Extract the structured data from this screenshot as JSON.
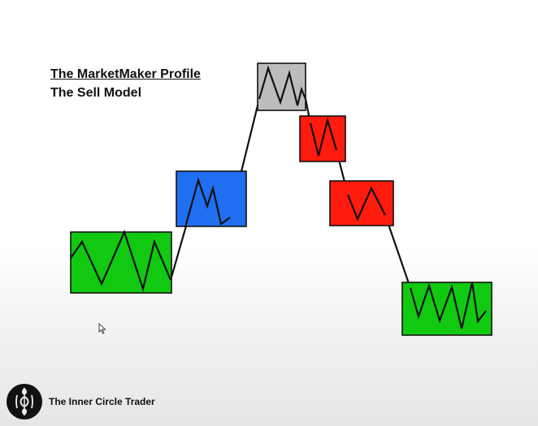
{
  "heading": {
    "title": "The MarketMaker Profile",
    "subtitle": "The Sell Model"
  },
  "footer": {
    "brand": "The Inner Circle Trader",
    "logo_icon": "icc-logo-icon"
  },
  "colors": {
    "accumulation": "#10c910",
    "reaccumulation": "#1f6ff0",
    "distribution": "#bcbcbc",
    "redistribution": "#ff1b0d",
    "line": "#111111"
  },
  "cursor_icon": "mouse-pointer-icon"
}
